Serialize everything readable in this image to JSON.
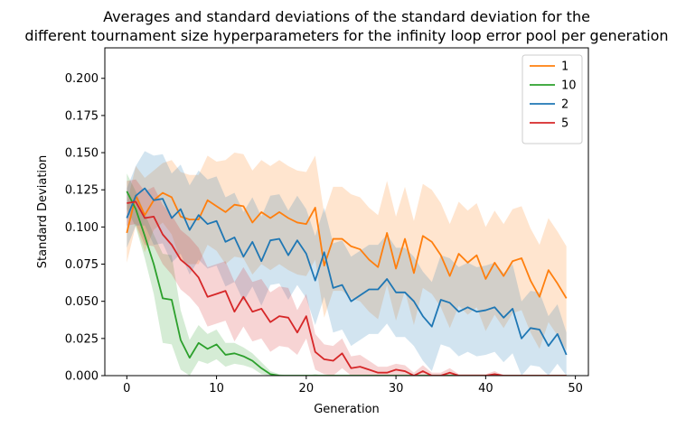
{
  "chart_data": {
    "type": "line",
    "title": "Averages and standard deviations of the standard deviation for the\ndifferent tournament size hyperparameters for the infinity loop error pool per generation",
    "xlabel": "Generation",
    "ylabel": "Standard Deviation",
    "xlim": [
      -2.45,
      51.45
    ],
    "ylim": [
      0,
      0.2205
    ],
    "xticks": [
      0,
      10,
      20,
      30,
      40,
      50
    ],
    "yticks": [
      0.0,
      0.025,
      0.05,
      0.075,
      0.1,
      0.125,
      0.15,
      0.175,
      0.2
    ],
    "ytick_labels": [
      "0.000",
      "0.025",
      "0.050",
      "0.075",
      "0.100",
      "0.125",
      "0.150",
      "0.175",
      "0.200"
    ],
    "grid": false,
    "legend_position": "top-right",
    "band_alpha": 0.2,
    "x": [
      0,
      1,
      2,
      3,
      4,
      5,
      6,
      7,
      8,
      9,
      10,
      11,
      12,
      13,
      14,
      15,
      16,
      17,
      18,
      19,
      20,
      21,
      22,
      23,
      24,
      25,
      26,
      27,
      28,
      29,
      30,
      31,
      32,
      33,
      34,
      35,
      36,
      37,
      38,
      39,
      40,
      41,
      42,
      43,
      44,
      45,
      46,
      47,
      48,
      49
    ],
    "series": [
      {
        "name": "1",
        "color": "#ff7f0e",
        "values": [
          0.096,
          0.121,
          0.108,
          0.118,
          0.123,
          0.12,
          0.107,
          0.105,
          0.105,
          0.118,
          0.114,
          0.11,
          0.115,
          0.114,
          0.103,
          0.11,
          0.106,
          0.11,
          0.106,
          0.103,
          0.102,
          0.113,
          0.074,
          0.092,
          0.092,
          0.087,
          0.085,
          0.078,
          0.073,
          0.096,
          0.072,
          0.092,
          0.069,
          0.094,
          0.09,
          0.081,
          0.067,
          0.082,
          0.076,
          0.081,
          0.065,
          0.076,
          0.067,
          0.077,
          0.079,
          0.064,
          0.053,
          0.071,
          0.062,
          0.052
        ],
        "std": [
          0.02,
          0.02,
          0.025,
          0.02,
          0.02,
          0.025,
          0.03,
          0.03,
          0.03,
          0.03,
          0.03,
          0.035,
          0.035,
          0.035,
          0.035,
          0.035,
          0.035,
          0.035,
          0.035,
          0.035,
          0.035,
          0.035,
          0.035,
          0.035,
          0.035,
          0.035,
          0.035,
          0.035,
          0.035,
          0.035,
          0.035,
          0.035,
          0.035,
          0.035,
          0.035,
          0.035,
          0.035,
          0.035,
          0.035,
          0.035,
          0.035,
          0.035,
          0.035,
          0.035,
          0.035,
          0.035,
          0.035,
          0.035,
          0.035,
          0.035
        ]
      },
      {
        "name": "10",
        "color": "#2ca02c",
        "values": [
          0.124,
          0.112,
          0.094,
          0.075,
          0.052,
          0.051,
          0.024,
          0.012,
          0.022,
          0.018,
          0.021,
          0.014,
          0.015,
          0.013,
          0.01,
          0.005,
          0.001,
          0.0,
          0.0,
          0.0,
          0.0,
          0.0,
          0.0,
          0.0,
          0.0,
          0.0,
          0.0,
          0.0,
          0.0,
          0.0,
          0.0,
          0.0,
          0.0,
          0.0,
          0.0,
          0.0,
          0.0,
          0.0,
          0.0,
          0.0,
          0.0,
          0.0,
          0.0,
          0.0,
          0.0,
          0.0,
          0.0,
          0.0,
          0.0,
          0.0
        ],
        "std": [
          0.012,
          0.012,
          0.015,
          0.02,
          0.03,
          0.03,
          0.02,
          0.012,
          0.012,
          0.01,
          0.01,
          0.008,
          0.007,
          0.006,
          0.005,
          0.004,
          0.002,
          0.001,
          0.0,
          0.0,
          0.0,
          0.001,
          0.0,
          0.0,
          0.0,
          0.0,
          0.0,
          0.0,
          0.0,
          0.0,
          0.0,
          0.0,
          0.0,
          0.0,
          0.0,
          0.0,
          0.0,
          0.0,
          0.0,
          0.0,
          0.0,
          0.0,
          0.0,
          0.0,
          0.0,
          0.0,
          0.0,
          0.0,
          0.0,
          0.0
        ]
      },
      {
        "name": "2",
        "color": "#1f77b4",
        "values": [
          0.106,
          0.121,
          0.126,
          0.118,
          0.119,
          0.106,
          0.112,
          0.098,
          0.108,
          0.102,
          0.104,
          0.09,
          0.093,
          0.08,
          0.09,
          0.077,
          0.091,
          0.092,
          0.081,
          0.091,
          0.082,
          0.064,
          0.083,
          0.059,
          0.061,
          0.05,
          0.054,
          0.058,
          0.058,
          0.065,
          0.056,
          0.056,
          0.05,
          0.04,
          0.033,
          0.051,
          0.049,
          0.043,
          0.046,
          0.043,
          0.044,
          0.046,
          0.039,
          0.045,
          0.025,
          0.032,
          0.031,
          0.02,
          0.028,
          0.014
        ],
        "std": [
          0.02,
          0.02,
          0.025,
          0.03,
          0.03,
          0.03,
          0.03,
          0.03,
          0.03,
          0.03,
          0.03,
          0.03,
          0.03,
          0.03,
          0.03,
          0.03,
          0.03,
          0.03,
          0.03,
          0.03,
          0.03,
          0.03,
          0.03,
          0.03,
          0.03,
          0.03,
          0.03,
          0.03,
          0.03,
          0.03,
          0.03,
          0.03,
          0.03,
          0.03,
          0.03,
          0.03,
          0.03,
          0.03,
          0.03,
          0.03,
          0.03,
          0.03,
          0.03,
          0.03,
          0.025,
          0.025,
          0.025,
          0.02,
          0.02,
          0.015
        ]
      },
      {
        "name": "5",
        "color": "#d62728",
        "values": [
          0.116,
          0.117,
          0.106,
          0.107,
          0.095,
          0.088,
          0.078,
          0.073,
          0.066,
          0.053,
          0.055,
          0.057,
          0.043,
          0.053,
          0.043,
          0.045,
          0.036,
          0.04,
          0.039,
          0.029,
          0.04,
          0.016,
          0.011,
          0.01,
          0.015,
          0.005,
          0.006,
          0.004,
          0.002,
          0.002,
          0.004,
          0.003,
          0.0,
          0.003,
          0.0,
          0.0,
          0.002,
          0.0,
          0.0,
          0.0,
          0.0,
          0.001,
          0.0,
          0.0,
          0.0,
          0.0,
          0.0,
          0.0,
          0.0,
          0.0
        ],
        "std": [
          0.015,
          0.015,
          0.018,
          0.02,
          0.02,
          0.02,
          0.02,
          0.02,
          0.02,
          0.02,
          0.02,
          0.02,
          0.02,
          0.02,
          0.02,
          0.02,
          0.02,
          0.02,
          0.02,
          0.015,
          0.015,
          0.012,
          0.01,
          0.01,
          0.01,
          0.008,
          0.008,
          0.006,
          0.004,
          0.004,
          0.004,
          0.004,
          0.002,
          0.004,
          0.002,
          0.002,
          0.003,
          0.001,
          0.001,
          0.001,
          0.001,
          0.002,
          0.0,
          0.0,
          0.0,
          0.0,
          0.0,
          0.0,
          0.0,
          0.0
        ]
      }
    ]
  }
}
